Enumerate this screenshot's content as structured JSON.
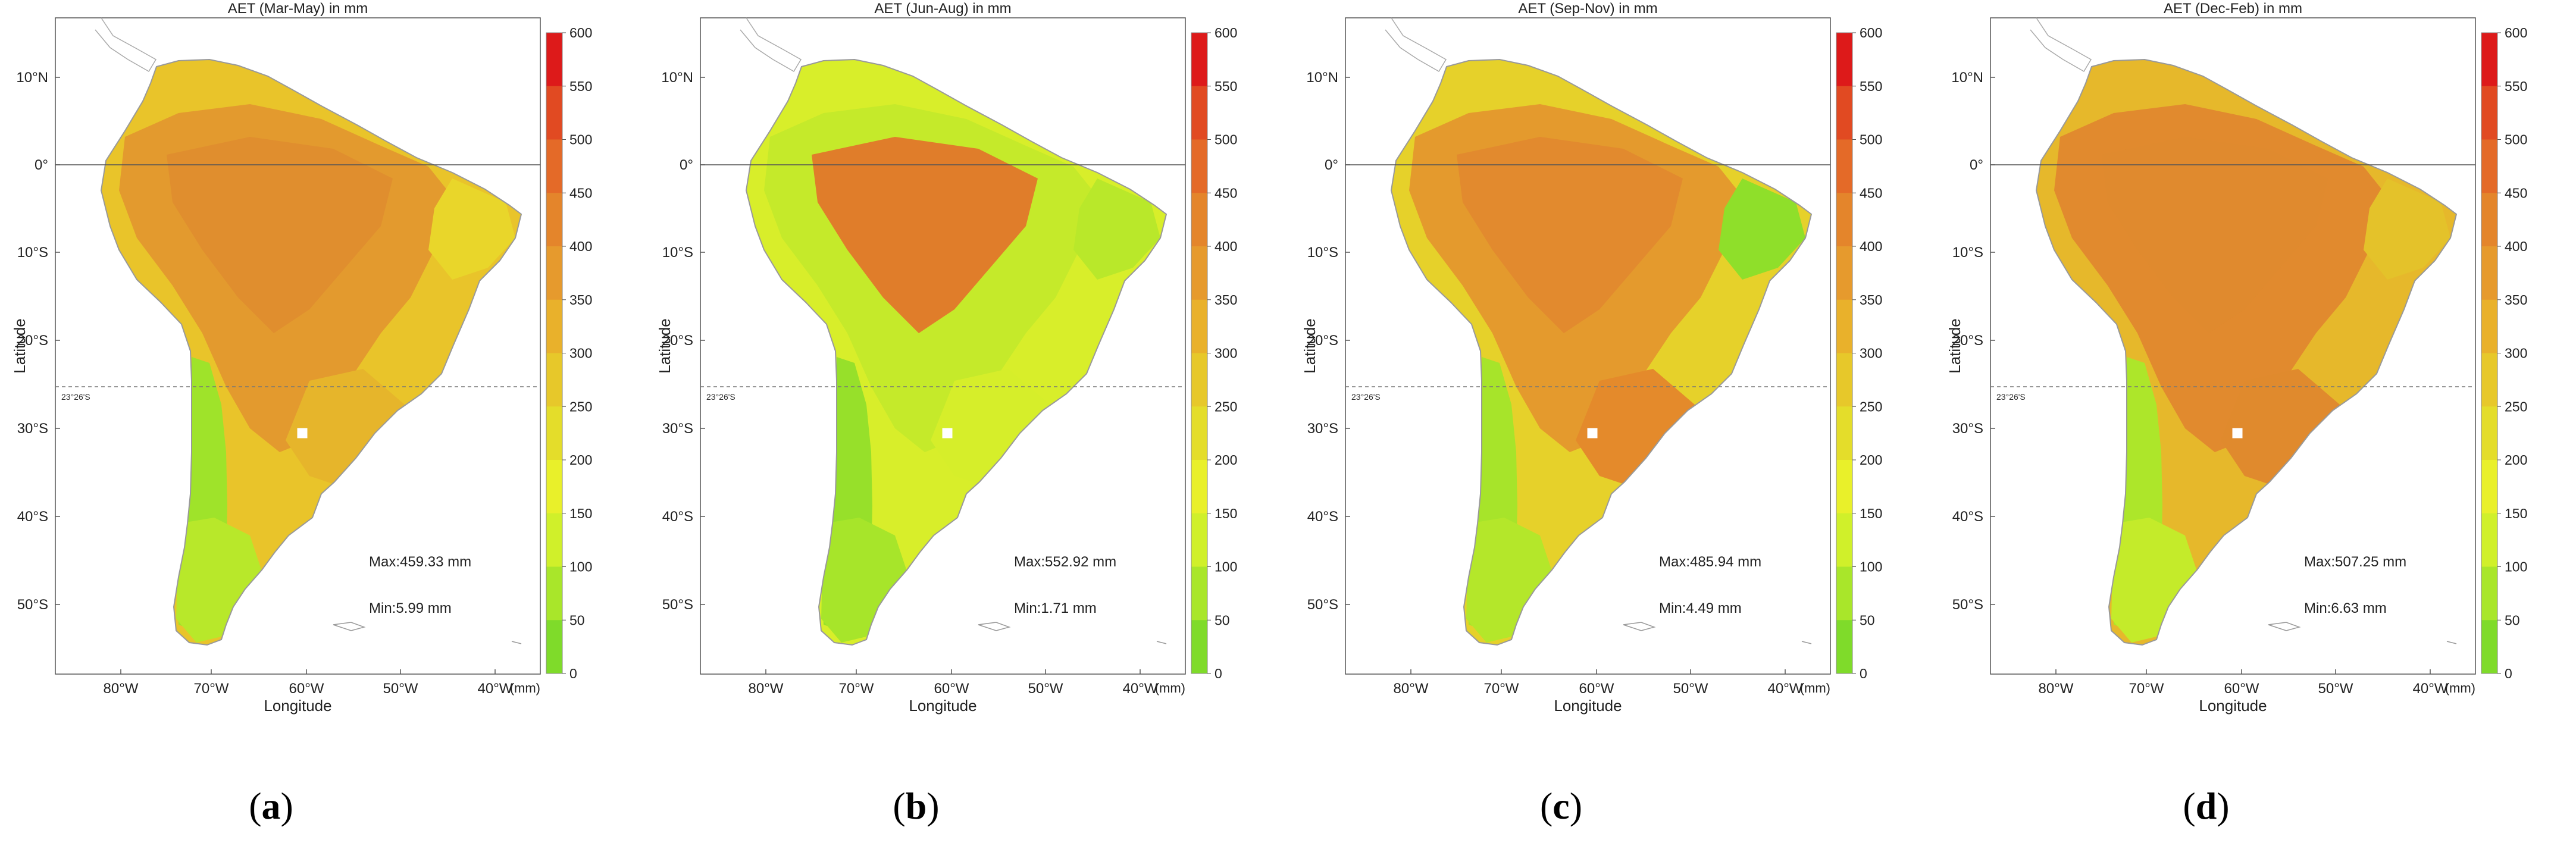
{
  "figure": {
    "longitude_label": "Longitude",
    "latitude_label": "Latitude",
    "unit_label": "(mm)",
    "tropic_label": "23°26'S",
    "lat_ticks": [
      "10°N",
      "0°",
      "10°S",
      "20°S",
      "30°S",
      "40°S",
      "50°S"
    ],
    "lon_ticks": [
      "80°W",
      "70°W",
      "60°W",
      "50°W",
      "40°W"
    ],
    "colorbar_ticks": [
      "600",
      "550",
      "500",
      "450",
      "400",
      "350",
      "300",
      "250",
      "200",
      "150",
      "100",
      "50",
      "0"
    ],
    "colorbar_colors": [
      "#dd1a1a",
      "#e14a22",
      "#e46a28",
      "#e4852b",
      "#e69a2d",
      "#e9b12b",
      "#e7c82a",
      "#e4dd2a",
      "#e9f02a",
      "#d0f02a",
      "#a9e62a",
      "#7fdb2a"
    ]
  },
  "chart_data": [
    {
      "type": "map",
      "title": "AET (Mar-May) in mm",
      "max_label": "Max:459.33 mm",
      "min_label": "Min:5.99 mm",
      "max": 459.33,
      "min": 5.99,
      "caption_letter": "a",
      "colorbar_range": [
        0,
        600
      ],
      "lat_range": [
        "15°N",
        "57°S"
      ],
      "lon_range": [
        "85°W",
        "33°W"
      ]
    },
    {
      "type": "map",
      "title": "AET (Jun-Aug) in mm",
      "max_label": "Max:552.92 mm",
      "min_label": "Min:1.71 mm",
      "max": 552.92,
      "min": 1.71,
      "caption_letter": "b",
      "colorbar_range": [
        0,
        600
      ],
      "lat_range": [
        "15°N",
        "57°S"
      ],
      "lon_range": [
        "85°W",
        "33°W"
      ]
    },
    {
      "type": "map",
      "title": "AET (Sep-Nov) in mm",
      "max_label": "Max:485.94 mm",
      "min_label": "Min:4.49 mm",
      "max": 485.94,
      "min": 4.49,
      "caption_letter": "c",
      "colorbar_range": [
        0,
        600
      ],
      "lat_range": [
        "15°N",
        "57°S"
      ],
      "lon_range": [
        "85°W",
        "33°W"
      ]
    },
    {
      "type": "map",
      "title": "AET (Dec-Feb) in mm",
      "max_label": "Max:507.25 mm",
      "min_label": "Min:6.63 mm",
      "max": 507.25,
      "min": 6.63,
      "caption_letter": "d",
      "colorbar_range": [
        0,
        600
      ],
      "lat_range": [
        "15°N",
        "57°S"
      ],
      "lon_range": [
        "85°W",
        "33°W"
      ]
    }
  ]
}
